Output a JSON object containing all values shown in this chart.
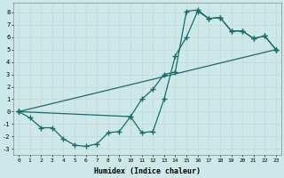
{
  "xlabel": "Humidex (Indice chaleur)",
  "bg_color": "#cce8e8",
  "grid_color": "#aacccc",
  "line_color": "#1a6b6b",
  "xlim": [
    -0.5,
    23.5
  ],
  "ylim": [
    -3.5,
    8.8
  ],
  "xticks": [
    0,
    1,
    2,
    3,
    4,
    5,
    6,
    7,
    8,
    9,
    10,
    11,
    12,
    13,
    14,
    15,
    16,
    17,
    18,
    19,
    20,
    21,
    22,
    23
  ],
  "yticks": [
    -3,
    -2,
    -1,
    0,
    1,
    2,
    3,
    4,
    5,
    6,
    7,
    8
  ],
  "line1_x": [
    0,
    1,
    2,
    3,
    4,
    5,
    6,
    7,
    8,
    9,
    10,
    11,
    12,
    13,
    14,
    15,
    16,
    17,
    18,
    19,
    20,
    21,
    22,
    23
  ],
  "line1_y": [
    0,
    -0.5,
    -1.3,
    -1.3,
    -2.2,
    -2.7,
    -2.8,
    -2.6,
    -1.7,
    -1.6,
    -0.4,
    -1.7,
    -1.6,
    1.0,
    4.5,
    6.0,
    8.1,
    7.5,
    7.6,
    6.5,
    6.5,
    5.9,
    6.1,
    5.0
  ],
  "line2_x": [
    0,
    10,
    11,
    12,
    13,
    14,
    15,
    16,
    17,
    18,
    19,
    20,
    21,
    22,
    23
  ],
  "line2_y": [
    0,
    -0.4,
    1.0,
    1.8,
    3.0,
    3.2,
    8.1,
    8.2,
    7.5,
    7.6,
    6.5,
    6.5,
    5.9,
    6.1,
    5.0
  ],
  "line3_x": [
    0,
    23
  ],
  "line3_y": [
    0,
    5.0
  ]
}
